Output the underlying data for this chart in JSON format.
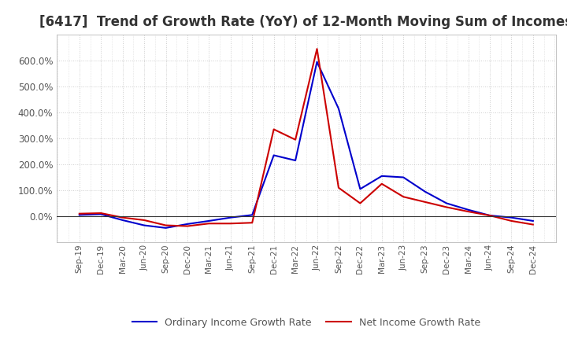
{
  "title": "[6417]  Trend of Growth Rate (YoY) of 12-Month Moving Sum of Incomes",
  "title_fontsize": 12,
  "ylim": [
    -100,
    700
  ],
  "yticks": [
    0,
    100,
    200,
    300,
    400,
    500,
    600
  ],
  "ytick_labels": [
    "0.0%",
    "100.0%",
    "200.0%",
    "300.0%",
    "400.0%",
    "500.0%",
    "600.0%"
  ],
  "background_color": "#ffffff",
  "plot_bg_color": "#ffffff",
  "grid_color": "#cccccc",
  "ordinary_color": "#0000cc",
  "net_color": "#cc0000",
  "legend_labels": [
    "Ordinary Income Growth Rate",
    "Net Income Growth Rate"
  ],
  "x_labels": [
    "Sep-19",
    "Dec-19",
    "Mar-20",
    "Jun-20",
    "Sep-20",
    "Dec-20",
    "Mar-21",
    "Jun-21",
    "Sep-21",
    "Dec-21",
    "Mar-22",
    "Jun-22",
    "Sep-22",
    "Dec-22",
    "Mar-23",
    "Jun-23",
    "Sep-23",
    "Dec-23",
    "Mar-24",
    "Jun-24",
    "Sep-24",
    "Dec-24"
  ],
  "ordinary_income_growth": [
    5,
    8,
    -15,
    -35,
    -45,
    -30,
    -18,
    -5,
    5,
    235,
    215,
    595,
    415,
    105,
    155,
    150,
    95,
    50,
    25,
    3,
    -5,
    -18
  ],
  "net_income_growth": [
    10,
    12,
    -5,
    -15,
    -35,
    -38,
    -28,
    -28,
    -25,
    335,
    295,
    645,
    110,
    50,
    125,
    75,
    55,
    35,
    18,
    3,
    -18,
    -32
  ]
}
